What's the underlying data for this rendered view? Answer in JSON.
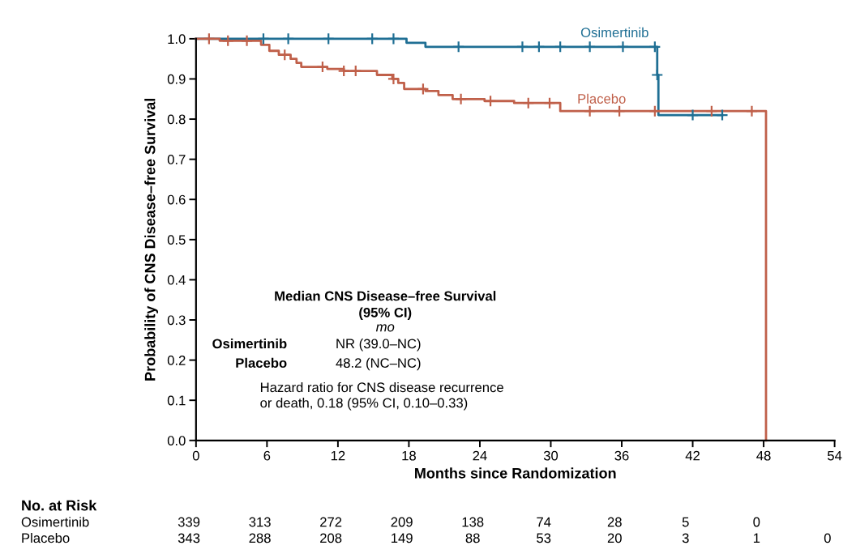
{
  "chart_data": {
    "type": "step",
    "xlabel": "Months since Randomization",
    "ylabel": "Probability of CNS Disease–free Survival",
    "xlim": [
      0,
      54
    ],
    "xticks": [
      0,
      6,
      12,
      18,
      24,
      30,
      36,
      42,
      48,
      54
    ],
    "ylim": [
      0,
      1.0
    ],
    "yticks": [
      {
        "value": 0,
        "label": "0.0"
      },
      {
        "value": 0.1,
        "label": "0.1"
      },
      {
        "value": 0.2,
        "label": "0.2"
      },
      {
        "value": 0.3,
        "label": "0.3"
      },
      {
        "value": 0.4,
        "label": "0.4"
      },
      {
        "value": 0.5,
        "label": "0.5"
      },
      {
        "value": 0.6,
        "label": "0.6"
      },
      {
        "value": 0.7,
        "label": "0.7"
      },
      {
        "value": 0.8,
        "label": "0.8"
      },
      {
        "value": 0.9,
        "label": "0.9"
      },
      {
        "value": 1.0,
        "label": "1.0"
      }
    ],
    "grid": false,
    "legend": false,
    "series": [
      {
        "name": "Osimertinib",
        "color": "#1f6f94",
        "x": [
          0,
          17.8,
          19.4,
          39.0,
          39.1,
          44.5
        ],
        "values": [
          1.0,
          0.99,
          0.98,
          0.91,
          0.81,
          0.81
        ]
      },
      {
        "name": "Placebo",
        "color": "#c0604a",
        "x": [
          0,
          2.0,
          5.5,
          6.2,
          7.0,
          8.0,
          8.5,
          8.9,
          11.1,
          12.5,
          15.3,
          16.6,
          17.1,
          17.6,
          19.4,
          20.5,
          21.7,
          24.4,
          26.9,
          30.8,
          48.2,
          48.2
        ],
        "values": [
          1.0,
          0.995,
          0.985,
          0.97,
          0.96,
          0.95,
          0.94,
          0.93,
          0.925,
          0.92,
          0.91,
          0.9,
          0.89,
          0.875,
          0.87,
          0.86,
          0.85,
          0.845,
          0.84,
          0.82,
          0.82,
          0.0
        ]
      },
      {
        "type": "scatter",
        "marker": "cross",
        "color": "#1f6f94",
        "x": [
          5.7,
          7.8,
          11.2,
          14.9,
          16.7,
          22.2,
          27.6,
          29.0,
          30.8,
          33.3,
          36.1,
          38.8,
          39.0,
          42.0,
          44.5
        ],
        "values": [
          1.0,
          1.0,
          1.0,
          1.0,
          1.0,
          0.98,
          0.98,
          0.98,
          0.98,
          0.98,
          0.98,
          0.98,
          0.91,
          0.81,
          0.81
        ]
      },
      {
        "type": "scatter",
        "marker": "cross",
        "color": "#c0604a",
        "x": [
          1.1,
          2.7,
          4.3,
          7.5,
          10.7,
          12.5,
          13.5,
          16.7,
          19.2,
          22.4,
          24.9,
          28.1,
          29.9,
          33.3,
          35.8,
          38.8,
          43.6,
          47.0
        ],
        "values": [
          1.0,
          0.995,
          0.995,
          0.96,
          0.93,
          0.92,
          0.92,
          0.9,
          0.875,
          0.85,
          0.845,
          0.84,
          0.84,
          0.82,
          0.82,
          0.82,
          0.82,
          0.82
        ]
      }
    ],
    "annotations": [
      "Median CNS Disease–free Survival\n(95% CI)",
      "mo",
      "Osimertinib",
      "NR (39.0–NC)",
      "Placebo",
      "48.2 (NC–NC)",
      "Hazard ratio for CNS disease recurrence\nor death, 0.18 (95% CI, 0.10–0.33)",
      "No. at Risk",
      "Osimertinib",
      "339",
      "313",
      "272",
      "209",
      "138",
      "74",
      "28",
      "5",
      "0",
      "Placebo",
      "343",
      "288",
      "208",
      "149",
      "88",
      "53",
      "20",
      "3",
      "1",
      "0"
    ]
  }
}
